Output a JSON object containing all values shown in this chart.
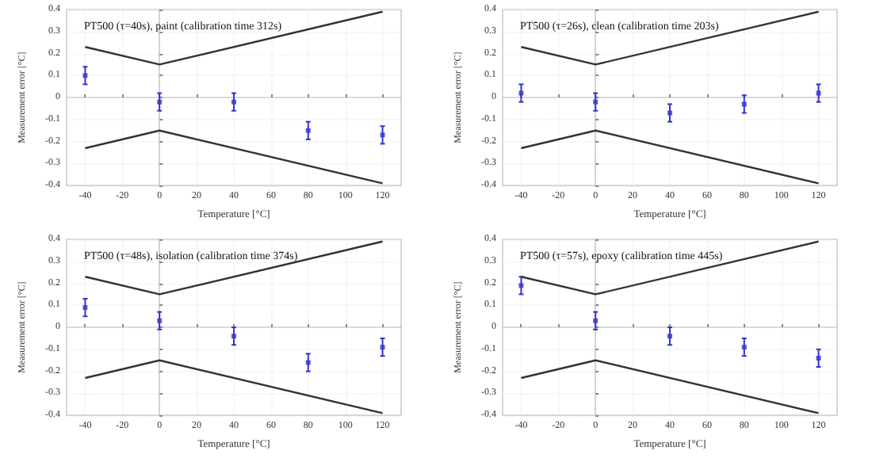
{
  "chart_data": [
    {
      "type": "scatter",
      "title": "PT500 (τ=40s), paint (calibration time 312s)",
      "xlabel": "Temperature [°C]",
      "ylabel": "Measurement error [°C]",
      "xlim": [
        -50,
        130
      ],
      "xticks": [
        -40,
        -20,
        0,
        20,
        40,
        60,
        80,
        100,
        120
      ],
      "ylim": [
        -0.4,
        0.4
      ],
      "yticks": [
        -0.4,
        -0.3,
        -0.2,
        -0.1,
        0,
        0.1,
        0.2,
        0.3,
        0.4
      ],
      "grid": true,
      "series": [
        {
          "type": "line",
          "color": "#333333",
          "x": [
            -40,
            0,
            120
          ],
          "values": [
            0.23,
            0.15,
            0.39
          ]
        },
        {
          "type": "line",
          "color": "#333333",
          "x": [
            -40,
            0,
            120
          ],
          "values": [
            -0.23,
            -0.15,
            -0.39
          ]
        },
        {
          "color": "#3333cc",
          "marker": "square",
          "x": [
            -40,
            0,
            40,
            80,
            120
          ],
          "values": [
            0.1,
            -0.02,
            -0.02,
            -0.15,
            -0.17
          ],
          "errors": [
            0.04,
            0.04,
            0.04,
            0.04,
            0.04
          ]
        }
      ]
    },
    {
      "type": "scatter",
      "title": "PT500 (τ=26s), clean (calibration time 203s)",
      "xlabel": "Temperature [°C]",
      "ylabel": "Measurement error [°C]",
      "xlim": [
        -50,
        130
      ],
      "xticks": [
        -40,
        -20,
        0,
        20,
        40,
        60,
        80,
        100,
        120
      ],
      "ylim": [
        -0.4,
        0.4
      ],
      "yticks": [
        -0.4,
        -0.3,
        -0.2,
        -0.1,
        0,
        0.1,
        0.2,
        0.3,
        0.4
      ],
      "grid": true,
      "series": [
        {
          "type": "line",
          "color": "#333333",
          "x": [
            -40,
            0,
            120
          ],
          "values": [
            0.23,
            0.15,
            0.39
          ]
        },
        {
          "type": "line",
          "color": "#333333",
          "x": [
            -40,
            0,
            120
          ],
          "values": [
            -0.23,
            -0.15,
            -0.39
          ]
        },
        {
          "color": "#3333cc",
          "marker": "square",
          "x": [
            -40,
            0,
            40,
            80,
            120
          ],
          "values": [
            0.02,
            -0.02,
            -0.07,
            -0.03,
            0.02
          ],
          "errors": [
            0.04,
            0.04,
            0.04,
            0.04,
            0.04
          ]
        }
      ]
    },
    {
      "type": "scatter",
      "title": "PT500 (τ=48s), isolation (calibration time 374s)",
      "xlabel": "Temperature [°C]",
      "ylabel": "Measurement error [°C]",
      "xlim": [
        -50,
        130
      ],
      "xticks": [
        -40,
        -20,
        0,
        20,
        40,
        60,
        80,
        100,
        120
      ],
      "ylim": [
        -0.4,
        0.4
      ],
      "yticks": [
        -0.4,
        -0.3,
        -0.2,
        -0.1,
        0,
        0.1,
        0.2,
        0.3,
        0.4
      ],
      "grid": true,
      "series": [
        {
          "type": "line",
          "color": "#333333",
          "x": [
            -40,
            0,
            120
          ],
          "values": [
            0.23,
            0.15,
            0.39
          ]
        },
        {
          "type": "line",
          "color": "#333333",
          "x": [
            -40,
            0,
            120
          ],
          "values": [
            -0.23,
            -0.15,
            -0.39
          ]
        },
        {
          "color": "#3333cc",
          "marker": "square",
          "x": [
            -40,
            0,
            40,
            80,
            120
          ],
          "values": [
            0.09,
            0.03,
            -0.04,
            -0.16,
            -0.09
          ],
          "errors": [
            0.04,
            0.04,
            0.04,
            0.04,
            0.04
          ]
        }
      ]
    },
    {
      "type": "scatter",
      "title": "PT500 (τ=57s), epoxy (calibration time 445s)",
      "xlabel": "Temperature [°C]",
      "ylabel": "Measurement error [°C]",
      "xlim": [
        -50,
        130
      ],
      "xticks": [
        -40,
        -20,
        0,
        20,
        40,
        60,
        80,
        100,
        120
      ],
      "ylim": [
        -0.4,
        0.4
      ],
      "yticks": [
        -0.4,
        -0.3,
        -0.2,
        -0.1,
        0,
        0.1,
        0.2,
        0.3,
        0.4
      ],
      "grid": true,
      "series": [
        {
          "type": "line",
          "color": "#333333",
          "x": [
            -40,
            0,
            120
          ],
          "values": [
            0.23,
            0.15,
            0.39
          ]
        },
        {
          "type": "line",
          "color": "#333333",
          "x": [
            -40,
            0,
            120
          ],
          "values": [
            -0.23,
            -0.15,
            -0.39
          ]
        },
        {
          "color": "#3333cc",
          "marker": "square",
          "x": [
            -40,
            0,
            40,
            80,
            120
          ],
          "values": [
            0.19,
            0.03,
            -0.04,
            -0.09,
            -0.14
          ],
          "errors": [
            0.04,
            0.04,
            0.04,
            0.04,
            0.04
          ]
        }
      ]
    }
  ]
}
